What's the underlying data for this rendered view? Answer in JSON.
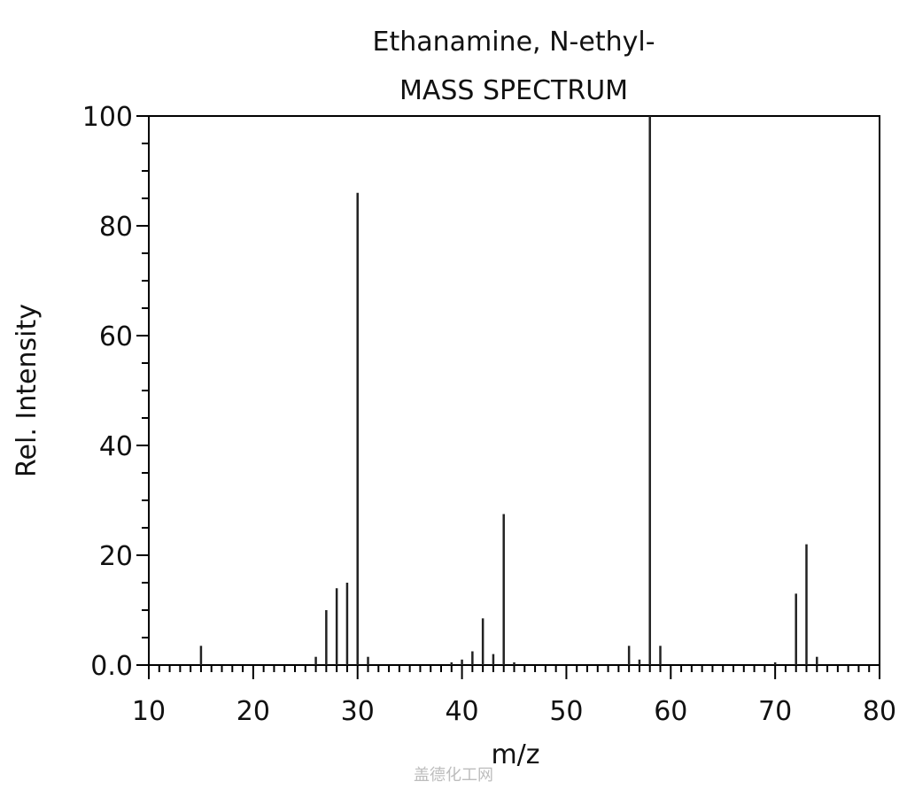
{
  "chart_data": {
    "type": "bar",
    "title": "Ethanamine, N-ethyl-",
    "subtitle": "MASS SPECTRUM",
    "xlabel": "m/z",
    "ylabel": "Rel. Intensity",
    "xlim": [
      10,
      80
    ],
    "ylim": [
      0,
      100
    ],
    "x_ticks": [
      "10",
      "20",
      "30",
      "40",
      "50",
      "60",
      "70",
      "80"
    ],
    "y_ticks": [
      "0.0",
      "20",
      "40",
      "60",
      "80",
      "100"
    ],
    "grid": false,
    "x": [
      15,
      26,
      27,
      28,
      29,
      30,
      31,
      39,
      40,
      41,
      42,
      43,
      44,
      45,
      56,
      57,
      58,
      59,
      70,
      72,
      73,
      74
    ],
    "values": [
      3.5,
      1.5,
      10,
      14,
      15,
      86,
      1.5,
      0.5,
      1,
      2.5,
      8.5,
      2,
      27.5,
      0.5,
      3.5,
      1,
      100,
      3.5,
      0.5,
      13,
      22,
      1.5
    ]
  },
  "watermark": "盖德化工网"
}
